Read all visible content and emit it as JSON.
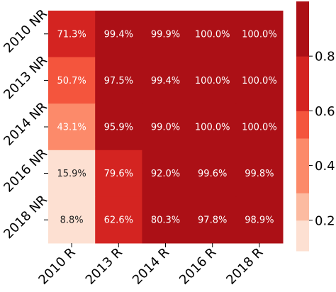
{
  "chart_data": {
    "type": "heatmap",
    "title": "",
    "row_labels": [
      "2010 NR",
      "2013 NR",
      "2014 NR",
      "2016 NR",
      "2018 NR"
    ],
    "col_labels": [
      "2010 R",
      "2013 R",
      "2014 R",
      "2016 R",
      "2018 R"
    ],
    "values": [
      [
        0.713,
        0.994,
        0.999,
        1.0,
        1.0
      ],
      [
        0.507,
        0.975,
        0.994,
        1.0,
        1.0
      ],
      [
        0.431,
        0.959,
        0.99,
        1.0,
        1.0
      ],
      [
        0.159,
        0.796,
        0.92,
        0.996,
        0.998
      ],
      [
        0.088,
        0.626,
        0.803,
        0.978,
        0.989
      ]
    ],
    "cell_text": [
      [
        "71.3%",
        "99.4%",
        "99.9%",
        "100.0%",
        "100.0%"
      ],
      [
        "50.7%",
        "97.5%",
        "99.4%",
        "100.0%",
        "100.0%"
      ],
      [
        "43.1%",
        "95.9%",
        "99.0%",
        "100.0%",
        "100.0%"
      ],
      [
        "15.9%",
        "79.6%",
        "92.0%",
        "99.6%",
        "99.8%"
      ],
      [
        "8.8%",
        "62.6%",
        "80.3%",
        "97.8%",
        "98.9%"
      ]
    ],
    "colorbar": {
      "range": [
        0.088,
        1.0
      ],
      "ticks": [
        0.2,
        0.4,
        0.6,
        0.8
      ],
      "tick_labels": [
        "0.2",
        "0.4",
        "0.6",
        "0.8"
      ],
      "bins": [
        {
          "from": 0.088,
          "to": 0.2,
          "color": "#fde0d2"
        },
        {
          "from": 0.2,
          "to": 0.3,
          "color": "#fcbba1"
        },
        {
          "from": 0.3,
          "to": 0.5,
          "color": "#fc8a6a"
        },
        {
          "from": 0.5,
          "to": 0.6,
          "color": "#f4553d"
        },
        {
          "from": 0.6,
          "to": 0.8,
          "color": "#d42421"
        },
        {
          "from": 0.8,
          "to": 1.0,
          "color": "#ac1016"
        }
      ]
    },
    "text_colors": {
      "light": "#ffffff",
      "dark": "#222222"
    }
  }
}
